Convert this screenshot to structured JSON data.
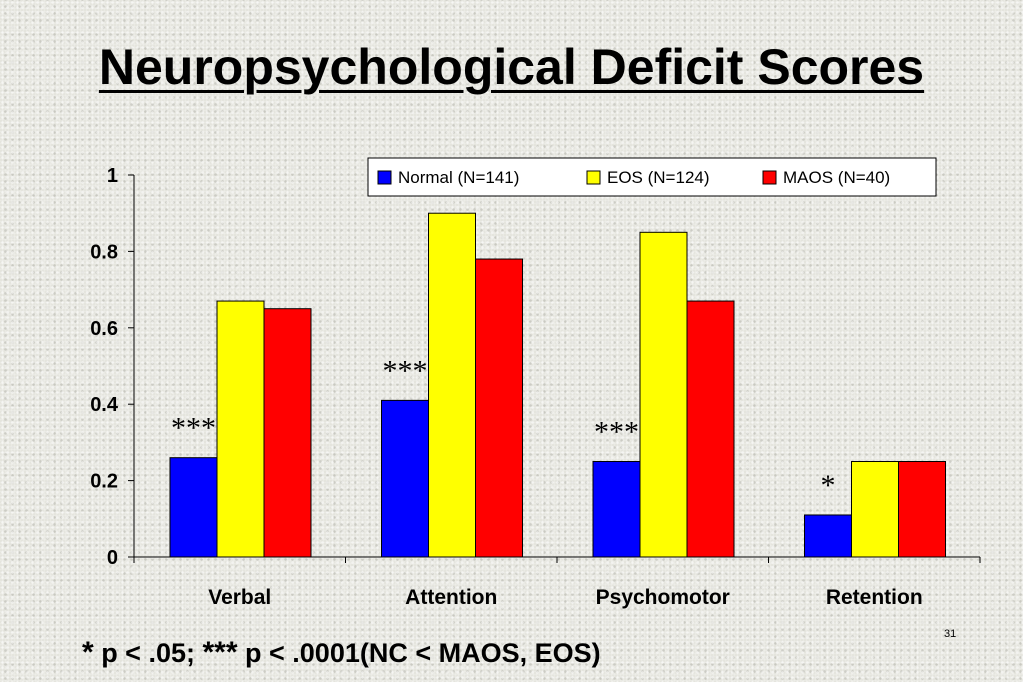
{
  "slide": {
    "title": "Neuropsychological Deficit Scores",
    "footnote_star1": "*",
    "footnote_part1": " p < .05; ",
    "footnote_star3": "***",
    "footnote_part2": " p < .0001(NC < MAOS, EOS)",
    "slide_number": "31"
  },
  "chart_data": {
    "type": "bar",
    "categories": [
      "Verbal",
      "Attention",
      "Psychomotor",
      "Retention"
    ],
    "series": [
      {
        "name": "Normal (N=141)",
        "color": "#0000ff",
        "values": [
          0.26,
          0.41,
          0.25,
          0.11
        ]
      },
      {
        "name": "EOS (N=124)",
        "color": "#ffff00",
        "values": [
          0.67,
          0.9,
          0.85,
          0.25
        ]
      },
      {
        "name": "MAOS (N=40)",
        "color": "#ff0000",
        "values": [
          0.65,
          0.78,
          0.67,
          0.25
        ]
      }
    ],
    "ylim": [
      0,
      1
    ],
    "yticks": [
      "0",
      "0.2",
      "0.4",
      "0.6",
      "0.8",
      "1"
    ],
    "xlabel": "",
    "ylabel": "",
    "grid": false,
    "legend_position": "top-right",
    "significance_markers": [
      "***",
      "***",
      "***",
      "*"
    ]
  }
}
